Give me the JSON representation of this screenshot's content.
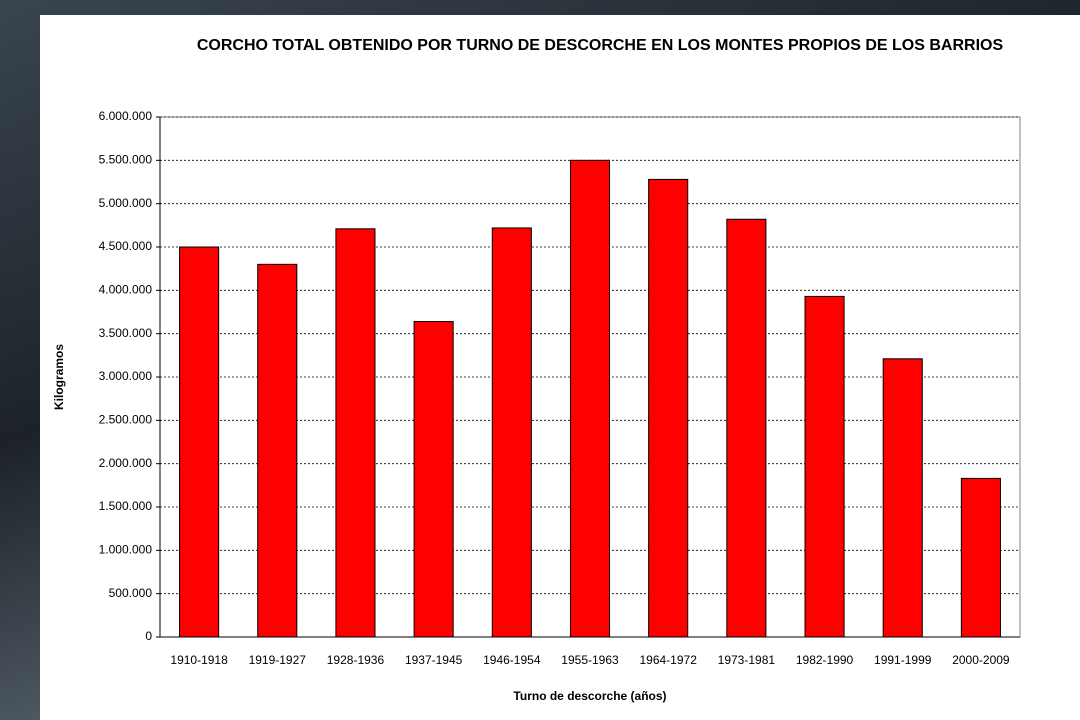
{
  "chart_data": {
    "type": "bar",
    "title": "CORCHO TOTAL OBTENIDO POR TURNO DE DESCORCHE EN LOS MONTES PROPIOS DE LOS BARRIOS",
    "x_label": "Turno de descorche (años)",
    "y_label": "Kilogramos",
    "categories": [
      "1910-1918",
      "1919-1927",
      "1928-1936",
      "1937-1945",
      "1946-1954",
      "1955-1963",
      "1964-1972",
      "1973-1981",
      "1982-1990",
      "1991-1999",
      "2000-2009"
    ],
    "values": [
      4500000,
      4300000,
      4710000,
      3640000,
      4720000,
      5500000,
      5280000,
      4820000,
      3930000,
      3210000,
      1830000
    ],
    "color": "#ff0000",
    "ylim": [
      0,
      6000000
    ],
    "yticks": [
      0,
      {
        "value": 500000,
        "label": "500.000"
      },
      {
        "value": 1000000,
        "label": "1.000.000"
      },
      {
        "value": 1500000,
        "label": "1.500.000"
      },
      {
        "value": 2000000,
        "label": "2.000.000"
      },
      {
        "value": 2500000,
        "label": "2.500.000"
      },
      {
        "value": 3000000,
        "label": "3.000.000"
      },
      {
        "value": 3500000,
        "label": "3.500.000"
      },
      {
        "value": 4000000,
        "label": "4.000.000"
      },
      {
        "value": 4500000,
        "label": "4.500.000"
      },
      {
        "value": 5000000,
        "label": "5.000.000"
      },
      {
        "value": 5500000,
        "label": "5.500.000"
      },
      {
        "value": 6000000,
        "label": "6.000.000"
      }
    ],
    "grid": true
  }
}
